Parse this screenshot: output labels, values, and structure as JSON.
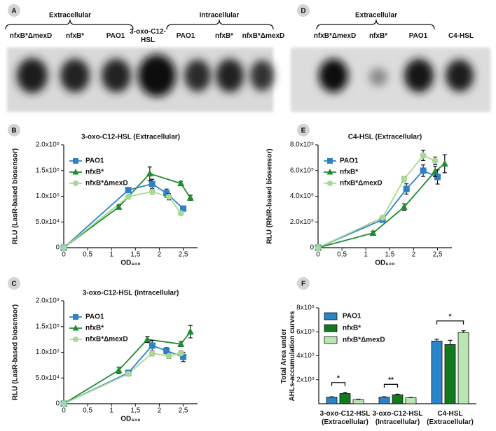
{
  "panel_labels": [
    "A",
    "B",
    "C",
    "D",
    "E",
    "F"
  ],
  "tlc": [
    {
      "group_labels": [
        "Extracellular",
        "Intracellular"
      ],
      "lanes": [
        "nfxB*ΔmexD",
        "nfxB*",
        "PAO1",
        "3-oxo-C12-\nHSL",
        "PAO1",
        "nfxB*",
        "nfxB*ΔmexD"
      ]
    },
    {
      "group_labels": [
        "Extracellular"
      ],
      "lanes": [
        "nfxB*ΔmexD",
        "nfxB*",
        "PAO1",
        "C4-HSL"
      ]
    }
  ],
  "chart_data": [
    {
      "type": "line",
      "title": "3-oxo-C12-HSL (Extracellular)",
      "y_label": "RLU (LasR-based biosensor)",
      "x_label": "OD₆₀₀",
      "xlim": [
        0,
        2.8
      ],
      "xticks": [
        0,
        {
          "value": 0.5,
          "label": "0,5"
        },
        1,
        {
          "value": 1.5,
          "label": "1,5"
        },
        2,
        {
          "value": 2.5,
          "label": "2,5"
        }
      ],
      "ylim": [
        0,
        200000
      ],
      "yticks": [
        0,
        {
          "value": 50000,
          "label": "5.0x10⁴"
        },
        {
          "value": 100000,
          "label": "1.0x10⁵"
        },
        {
          "value": 150000,
          "label": "1.5x10⁵"
        },
        {
          "value": 200000,
          "label": "2.0x10⁵"
        }
      ],
      "legend": "upper left",
      "series": [
        {
          "name": "PAO1",
          "color": "#2e80c9",
          "marker": "square",
          "x": [
            0,
            1.35,
            1.85,
            2.15,
            2.5
          ],
          "values": [
            0,
            112000,
            124000,
            106000,
            76000
          ],
          "errors": [
            0,
            5000,
            9000,
            8000,
            5000
          ]
        },
        {
          "name": "nfxB*",
          "color": "#1f8c30",
          "marker": "triangle",
          "x": [
            0,
            1.15,
            1.8,
            2.45,
            2.65
          ],
          "values": [
            0,
            79000,
            144000,
            125000,
            97000
          ],
          "errors": [
            0,
            4000,
            13000,
            4000,
            5000
          ]
        },
        {
          "name": "nfxB*ΔmexD",
          "color": "#a6d996",
          "marker": "circle",
          "x": [
            0,
            1.35,
            1.85,
            2.2,
            2.45
          ],
          "values": [
            0,
            99000,
            109000,
            99000,
            67000
          ],
          "errors": [
            0,
            4000,
            5000,
            6000,
            4000
          ]
        }
      ]
    },
    {
      "type": "line",
      "title": "3-oxo-C12-HSL (Intracellular)",
      "y_label": "RLU (LasR-based biosensor)",
      "x_label": "OD₆₀₀",
      "xlim": [
        0,
        2.8
      ],
      "xticks": [
        0,
        {
          "value": 0.5,
          "label": "0,5"
        },
        1,
        {
          "value": 1.5,
          "label": "1,5"
        },
        2,
        {
          "value": 2.5,
          "label": "2,5"
        }
      ],
      "ylim": [
        0,
        200000
      ],
      "yticks": [
        0,
        {
          "value": 50000,
          "label": "5.0x10⁴"
        },
        {
          "value": 100000,
          "label": "1.0x10⁵"
        },
        {
          "value": 150000,
          "label": "1.5x10⁵"
        },
        {
          "value": 200000,
          "label": "2.0x10⁵"
        }
      ],
      "legend": "upper left",
      "series": [
        {
          "name": "PAO1",
          "color": "#2e80c9",
          "marker": "square",
          "x": [
            0,
            1.35,
            1.85,
            2.15,
            2.5
          ],
          "values": [
            0,
            60000,
            113000,
            103000,
            91000
          ],
          "errors": [
            0,
            5000,
            10000,
            6000,
            9000
          ]
        },
        {
          "name": "nfxB*",
          "color": "#1f8c30",
          "marker": "triangle",
          "x": [
            0,
            1.15,
            1.75,
            2.45,
            2.65
          ],
          "values": [
            0,
            65000,
            125000,
            116000,
            140000
          ],
          "errors": [
            0,
            6000,
            6000,
            5000,
            12000
          ]
        },
        {
          "name": "nfxB*ΔmexD",
          "color": "#a6d996",
          "marker": "circle",
          "x": [
            0,
            1.35,
            1.85,
            2.2,
            2.45
          ],
          "values": [
            0,
            58000,
            98000,
            93000,
            98000
          ],
          "errors": [
            0,
            4000,
            5000,
            5000,
            5000
          ]
        }
      ]
    },
    {
      "type": "line",
      "title": "C4-HSL (Extracellular)",
      "y_label": "RLU (RhlR-based biosensor)",
      "x_label": "OD₆₀₀",
      "xlim": [
        0,
        2.8
      ],
      "xticks": [
        0,
        {
          "value": 0.5,
          "label": "0,5"
        },
        1,
        {
          "value": 1.5,
          "label": "1,5"
        },
        2,
        {
          "value": 2.5,
          "label": "2,5"
        }
      ],
      "ylim": [
        0,
        800000
      ],
      "yticks": [
        0,
        {
          "value": 200000,
          "label": "2.0x10⁵"
        },
        {
          "value": 400000,
          "label": "4.0x10⁵"
        },
        {
          "value": 600000,
          "label": "6.0x10⁵"
        },
        {
          "value": 800000,
          "label": "8.0x10⁵"
        }
      ],
      "legend": "upper left",
      "series": [
        {
          "name": "PAO1",
          "color": "#2e80c9",
          "marker": "square",
          "x": [
            0,
            1.35,
            1.85,
            2.2,
            2.5
          ],
          "values": [
            0,
            218000,
            457000,
            599000,
            550000
          ],
          "errors": [
            0,
            15000,
            40000,
            45000,
            55000
          ]
        },
        {
          "name": "nfxB*",
          "color": "#1f8c30",
          "marker": "triangle",
          "x": [
            0,
            1.15,
            1.8,
            2.45,
            2.65
          ],
          "values": [
            0,
            114000,
            316000,
            593000,
            653000
          ],
          "errors": [
            0,
            15000,
            25000,
            40000,
            70000
          ]
        },
        {
          "name": "nfxB*ΔmexD",
          "color": "#a6d996",
          "marker": "circle",
          "x": [
            0,
            1.35,
            1.8,
            2.2,
            2.45
          ],
          "values": [
            0,
            234000,
            533000,
            718000,
            675000
          ],
          "errors": [
            0,
            15000,
            20000,
            40000,
            30000
          ]
        }
      ]
    },
    {
      "type": "bar",
      "y_label": "Total Area under\nAHLs-accumulation curves",
      "categories": [
        "3-oxo-C12-HSL\n(Extracellular)",
        "3-oxo-C12-HSL\n(Intracellular)",
        "C4-HSL\n(Extracellular)"
      ],
      "ylim": [
        0,
        800000
      ],
      "yticks": [
        {
          "value": 200000,
          "label": "2x10⁵"
        },
        {
          "value": 400000,
          "label": "4x10⁵"
        },
        {
          "value": 600000,
          "label": "6x10⁵"
        },
        {
          "value": 800000,
          "label": "8x10⁵"
        }
      ],
      "legend": "upper left",
      "annotations": [
        "*",
        "**",
        "*"
      ],
      "series": [
        {
          "name": "PAO1",
          "color": "#2a84c8",
          "values": [
            55000,
            55000,
            523000
          ],
          "errors": [
            3000,
            3000,
            15000
          ]
        },
        {
          "name": "nfxB*",
          "color": "#13791f",
          "values": [
            85000,
            75000,
            494000
          ],
          "errors": [
            10000,
            5000,
            35000
          ]
        },
        {
          "name": "nfxB*ΔmexD",
          "color": "#b9e6b1",
          "values": [
            35000,
            50000,
            594000
          ],
          "errors": [
            3000,
            3000,
            15000
          ]
        }
      ]
    }
  ]
}
